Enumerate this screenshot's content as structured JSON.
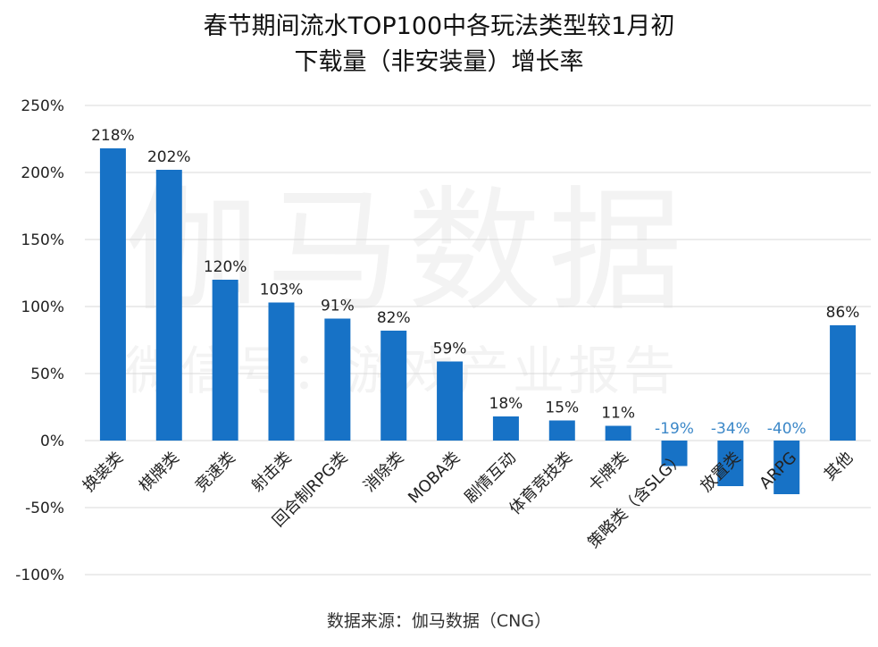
{
  "title_lines": [
    "春节期间流水TOP100中各玩法类型较1月初",
    "下载量（非安装量）增长率"
  ],
  "watermark": {
    "main": "伽马数据",
    "sub": "微信号：游戏产业报告"
  },
  "source": "数据来源：伽马数据（CNG）",
  "colors": {
    "bar": "#1772C6",
    "negative_label": "#3C88C8",
    "grid": "#D9D9D9",
    "text": "#222222"
  },
  "chart_data": {
    "type": "bar",
    "title": "春节期间流水TOP100中各玩法类型较1月初下载量（非安装量）增长率",
    "categories": [
      "换装类",
      "棋牌类",
      "竞速类",
      "射击类",
      "回合制RPG类",
      "消除类",
      "MOBA类",
      "剧情互动",
      "体育竞技类",
      "卡牌类",
      "策略类（含SLG）",
      "放置类",
      "ARPG",
      "其他"
    ],
    "values": [
      218,
      202,
      120,
      103,
      91,
      82,
      59,
      18,
      15,
      11,
      -19,
      -34,
      -40,
      86
    ],
    "value_labels": [
      "218%",
      "202%",
      "120%",
      "103%",
      "91%",
      "82%",
      "59%",
      "18%",
      "15%",
      "11%",
      "-19%",
      "-34%",
      "-40%",
      "86%"
    ],
    "ylim": [
      -100,
      250
    ],
    "yticks": [
      250,
      200,
      150,
      100,
      50,
      0,
      -50,
      -100
    ],
    "ytick_labels": [
      "250%",
      "200%",
      "150%",
      "100%",
      "50%",
      "0%",
      "-50%",
      "-100%"
    ],
    "xlabel": "",
    "ylabel": "",
    "grid": true,
    "legend": "none"
  }
}
